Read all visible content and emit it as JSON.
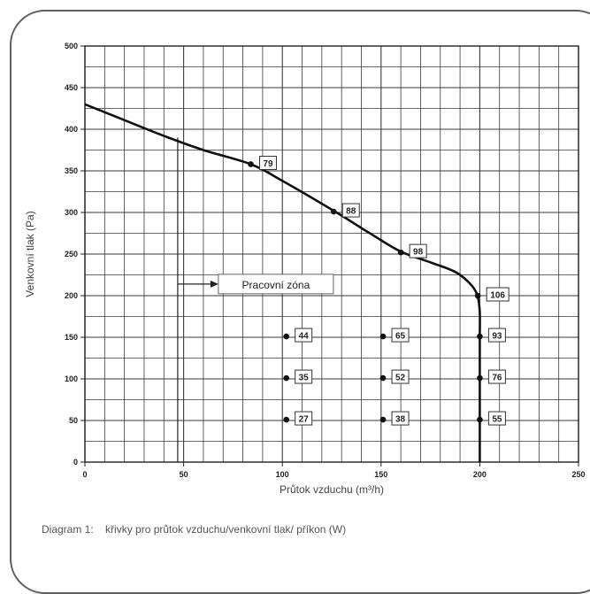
{
  "chart_data": {
    "type": "line",
    "xlabel": "Průtok vzduchu  (m³/h)",
    "ylabel": "Venkovní tlak (Pa)",
    "xlim": [
      0,
      250
    ],
    "ylim": [
      0,
      500
    ],
    "xticks": [
      "0",
      "50",
      "100",
      "150",
      "200",
      "250"
    ],
    "yticks": [
      "0",
      "50",
      "100",
      "150",
      "200",
      "250",
      "300",
      "350",
      "400",
      "450",
      "500"
    ],
    "grid": true,
    "series": [
      {
        "x": [
          0,
          20,
          40,
          60,
          84,
          100,
          126,
          145,
          160,
          175,
          188,
          196,
          199,
          200,
          200,
          200,
          200
        ],
        "y": [
          430,
          411,
          392,
          375,
          358,
          338,
          302,
          274,
          253,
          240,
          228,
          212,
          198,
          180,
          150,
          100,
          0
        ]
      }
    ],
    "points": [
      {
        "x": 84,
        "y": 358,
        "label": "79"
      },
      {
        "x": 126,
        "y": 301,
        "label": "88"
      },
      {
        "x": 160,
        "y": 252,
        "label": "98"
      },
      {
        "x": 199,
        "y": 200,
        "label": "106"
      },
      {
        "x": 102,
        "y": 151,
        "label": "44"
      },
      {
        "x": 151,
        "y": 151,
        "label": "65"
      },
      {
        "x": 200,
        "y": 151,
        "label": "93"
      },
      {
        "x": 102,
        "y": 101,
        "label": "35"
      },
      {
        "x": 151,
        "y": 101,
        "label": "52"
      },
      {
        "x": 200,
        "y": 101,
        "label": "76"
      },
      {
        "x": 102,
        "y": 51,
        "label": "27"
      },
      {
        "x": 151,
        "y": 51,
        "label": "38"
      },
      {
        "x": 200,
        "y": 51,
        "label": "55"
      }
    ],
    "annotation": {
      "text": "Pracovní zóna",
      "vertical_line_x": 47,
      "arrow_y": 214
    }
  },
  "caption": {
    "prefix": "Diagram 1:",
    "text": "křivky pro průtok vzduchu/venkovní tlak/ příkon (W)"
  }
}
